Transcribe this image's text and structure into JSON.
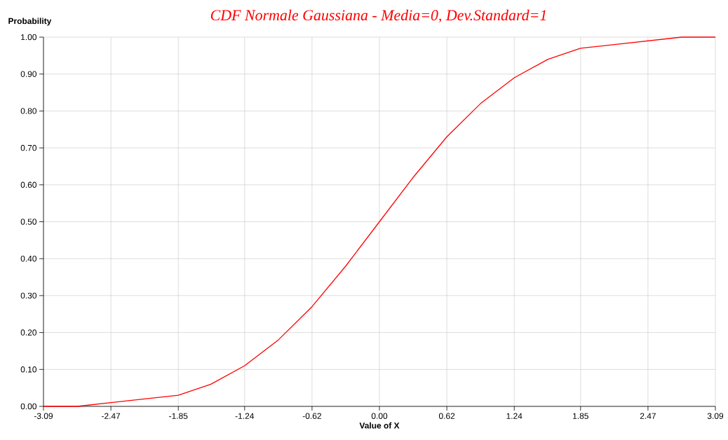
{
  "chart_data": {
    "type": "line",
    "title": "CDF Normale Gaussiana  -  Media=0, Dev.Standard=1",
    "xlabel": "Value of X",
    "ylabel": "Probability",
    "x": [
      -3.09,
      -2.78,
      -2.47,
      -2.16,
      -1.85,
      -1.55,
      -1.24,
      -0.93,
      -0.62,
      -0.31,
      0.0,
      0.31,
      0.62,
      0.93,
      1.24,
      1.55,
      1.85,
      2.16,
      2.47,
      2.78,
      3.09
    ],
    "series": [
      {
        "color": "#ff0000",
        "values": [
          0.0,
          0.0,
          0.01,
          0.02,
          0.03,
          0.06,
          0.11,
          0.18,
          0.27,
          0.38,
          0.5,
          0.62,
          0.73,
          0.82,
          0.89,
          0.94,
          0.97,
          0.98,
          0.99,
          1.0,
          1.0
        ]
      }
    ],
    "xlim": [
      -3.09,
      3.09
    ],
    "ylim": [
      0,
      1
    ],
    "xticks": [
      {
        "value": -3.09,
        "label": "-3.09"
      },
      {
        "value": -2.47,
        "label": "-2.47"
      },
      {
        "value": -1.85,
        "label": "-1.85"
      },
      {
        "value": -1.24,
        "label": "-1.24"
      },
      {
        "value": -0.62,
        "label": "-0.62"
      },
      {
        "value": 0,
        "label": "0.00"
      },
      {
        "value": 0.62,
        "label": "0.62"
      },
      {
        "value": 1.24,
        "label": "1.24"
      },
      {
        "value": 1.85,
        "label": "1.85"
      },
      {
        "value": 2.47,
        "label": "2.47"
      },
      {
        "value": 3.09,
        "label": "3.09"
      }
    ],
    "yticks": [
      {
        "value": 0,
        "label": "0.00"
      },
      {
        "value": 0.1,
        "label": "0.10"
      },
      {
        "value": 0.2,
        "label": "0.20"
      },
      {
        "value": 0.3,
        "label": "0.30"
      },
      {
        "value": 0.4,
        "label": "0.40"
      },
      {
        "value": 0.5,
        "label": "0.50"
      },
      {
        "value": 0.6,
        "label": "0.60"
      },
      {
        "value": 0.7,
        "label": "0.70"
      },
      {
        "value": 0.8,
        "label": "0.80"
      },
      {
        "value": 0.9,
        "label": "0.90"
      },
      {
        "value": 1,
        "label": "1.00"
      }
    ],
    "grid": true,
    "marker": "none",
    "line_style": "solid"
  }
}
